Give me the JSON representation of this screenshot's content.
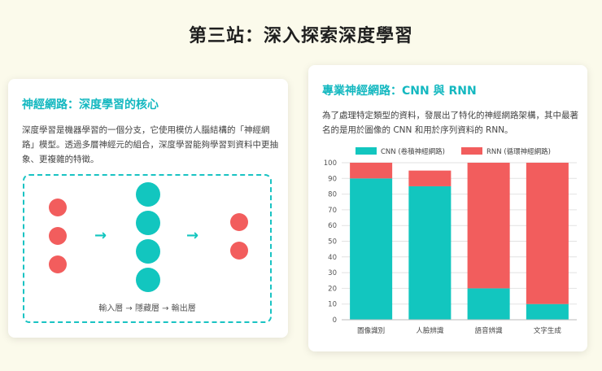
{
  "page": {
    "title": "第三站：深入探索深度學習"
  },
  "left_card": {
    "title": "神經網路：深度學習的核心",
    "description": "深度學習是機器學習的一個分支，它使用模仿人腦結構的「神經網路」模型。透過多層神經元的組合，深度學習能夠學習到資料中更抽象、更複雜的特徵。",
    "diagram": {
      "caption": "輸入層 → 隱藏層 → 輸出層",
      "arrow": "→",
      "layers": [
        3,
        4,
        2
      ]
    }
  },
  "right_card": {
    "title": "專業神經網路：CNN 與 RNN",
    "description": "為了處理特定類型的資料，發展出了特化的神經網路架構，其中最著名的是用於圖像的 CNN 和用於序列資料的 RNN。"
  },
  "chart_data": {
    "type": "bar",
    "stacked": true,
    "categories": [
      "圖像識別",
      "人臉辨識",
      "語音辨識",
      "文字生成"
    ],
    "series": [
      {
        "name": "CNN (卷積神經網路)",
        "color": "#12c6bf",
        "values": [
          90,
          85,
          20,
          10
        ]
      },
      {
        "name": "RNN (循環神經網路)",
        "color": "#f25d5d",
        "values": [
          10,
          10,
          80,
          90
        ]
      }
    ],
    "ylim": [
      0,
      100
    ],
    "yticks": [
      0,
      10,
      20,
      30,
      40,
      50,
      60,
      70,
      80,
      90,
      100
    ],
    "grid": true,
    "legend": "top"
  }
}
